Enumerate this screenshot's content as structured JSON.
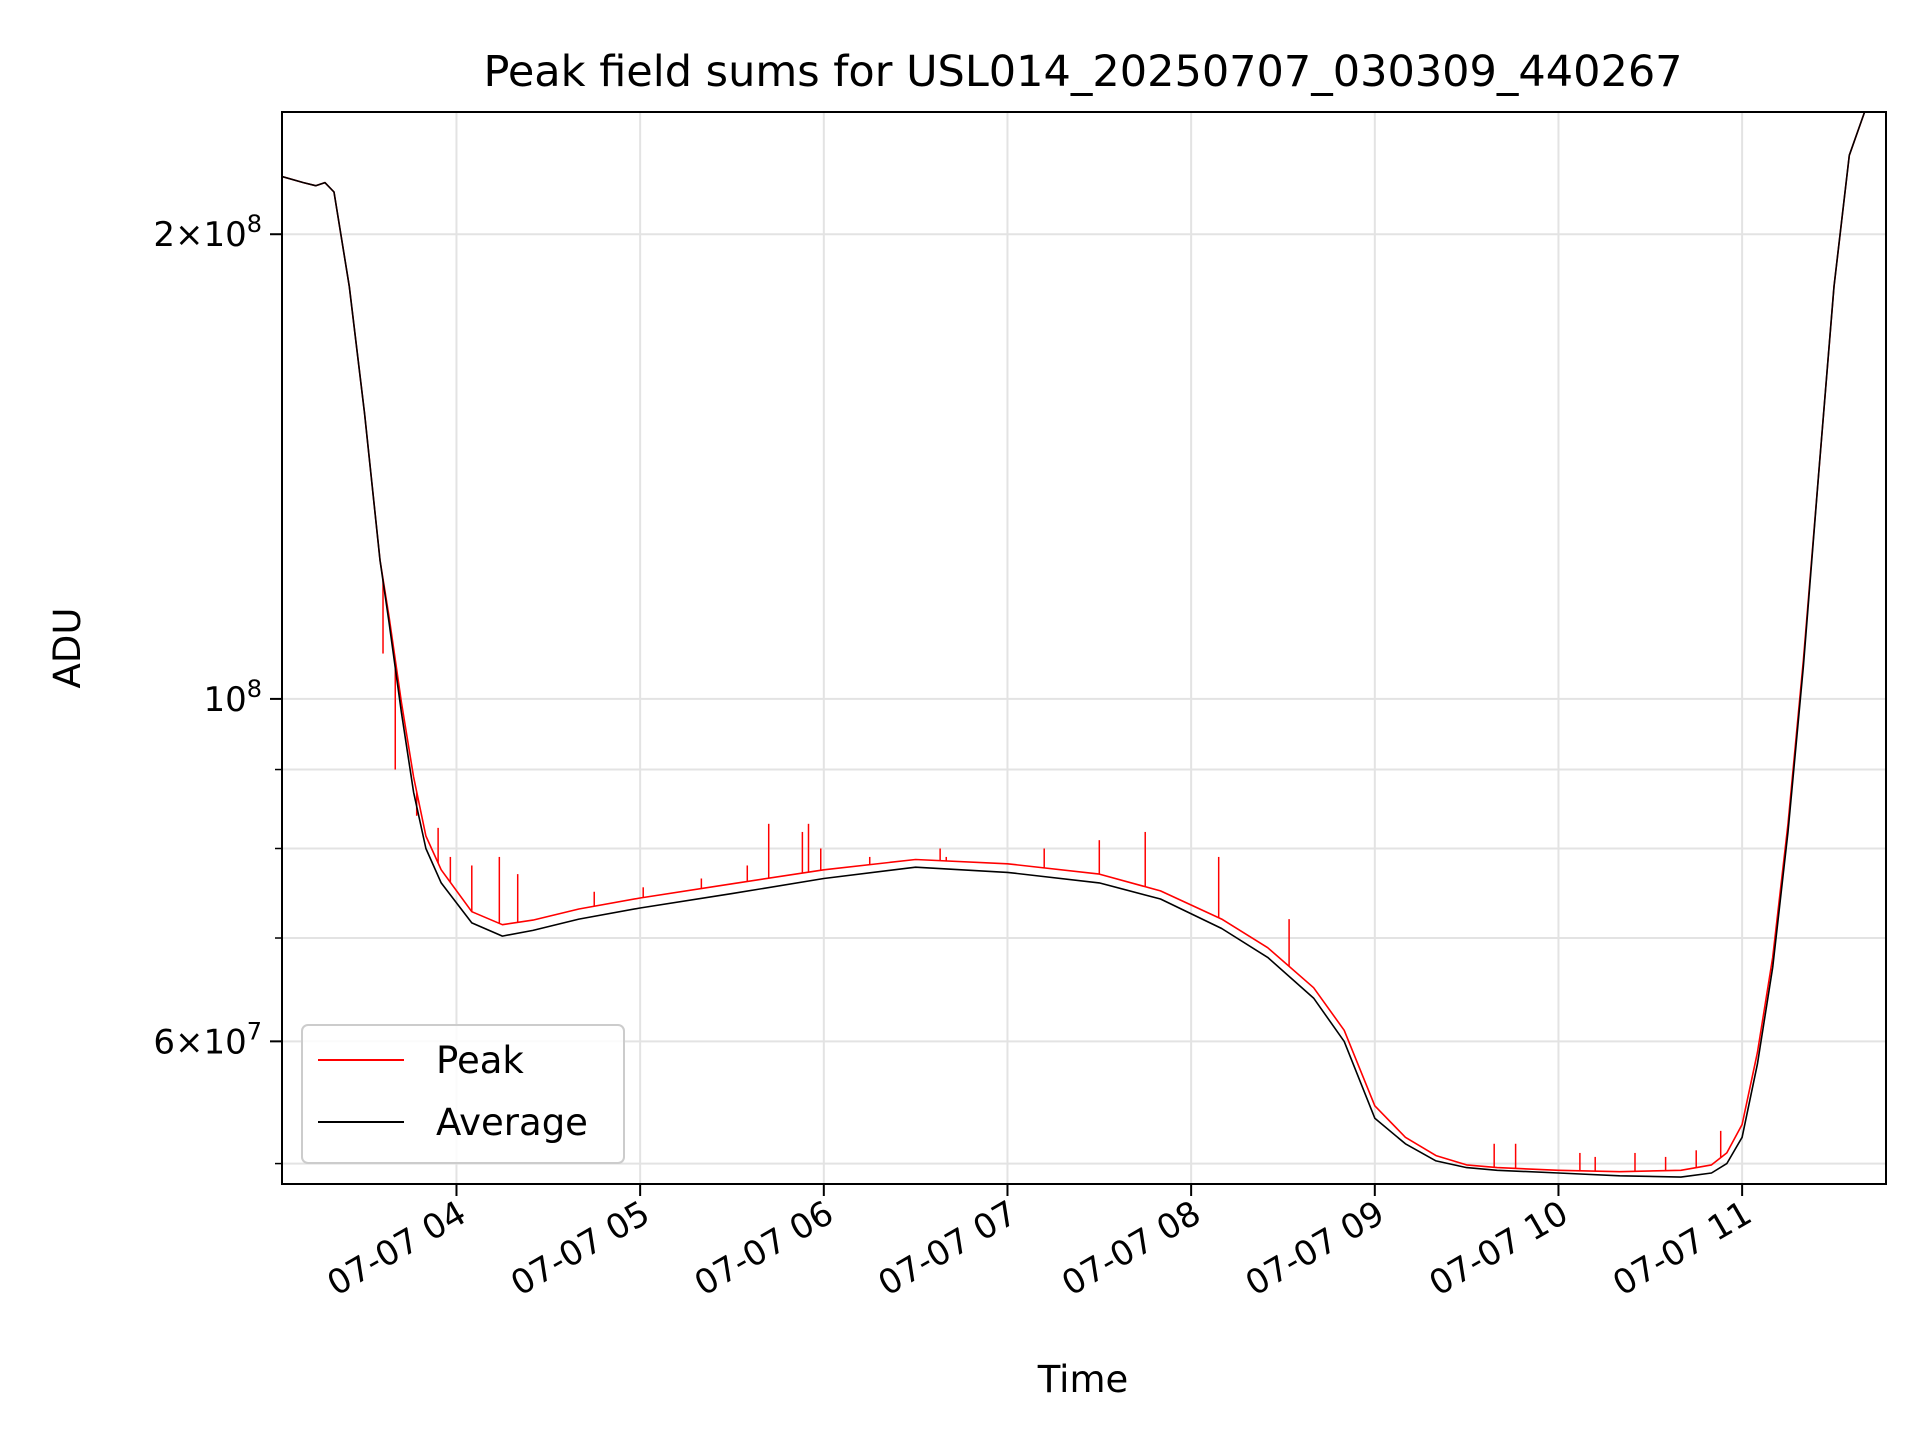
{
  "chart_data": {
    "type": "line",
    "title": "Peak field sums for USL014_20250707_030309_440267",
    "xlabel": "Time",
    "ylabel": "ADU",
    "yscale": "log",
    "ylim": [
      48500000,
      240000000
    ],
    "xlim": [
      "2025-07-07 03:03",
      "2025-07-07 11:47"
    ],
    "grid": true,
    "legend_position": "lower-left",
    "x_ticks": [
      {
        "label": "07-07 04",
        "value": "2025-07-07 04:00"
      },
      {
        "label": "07-07 05",
        "value": "2025-07-07 05:00"
      },
      {
        "label": "07-07 06",
        "value": "2025-07-07 06:00"
      },
      {
        "label": "07-07 07",
        "value": "2025-07-07 07:00"
      },
      {
        "label": "07-07 08",
        "value": "2025-07-07 08:00"
      },
      {
        "label": "07-07 09",
        "value": "2025-07-07 09:00"
      },
      {
        "label": "07-07 10",
        "value": "2025-07-07 10:00"
      },
      {
        "label": "07-07 11",
        "value": "2025-07-07 11:00"
      }
    ],
    "y_ticks": [
      {
        "mantissa": "2",
        "exponent": "8",
        "value": 200000000
      },
      {
        "mantissa": "",
        "exponent": "8",
        "value": 100000000
      },
      {
        "mantissa": "6",
        "exponent": "7",
        "value": 60000000
      }
    ],
    "y_minor_ticks": [
      50000000,
      70000000,
      80000000,
      90000000
    ],
    "colors": {
      "Peak": "#ff0000",
      "Average": "#000000"
    },
    "series": [
      {
        "name": "Average",
        "x": [
          "2025-07-07 03:03",
          "2025-07-07 03:10",
          "2025-07-07 03:14",
          "2025-07-07 03:17",
          "2025-07-07 03:20",
          "2025-07-07 03:25",
          "2025-07-07 03:30",
          "2025-07-07 03:35",
          "2025-07-07 03:38",
          "2025-07-07 03:42",
          "2025-07-07 03:46",
          "2025-07-07 03:50",
          "2025-07-07 03:55",
          "2025-07-07 04:05",
          "2025-07-07 04:15",
          "2025-07-07 04:25",
          "2025-07-07 04:40",
          "2025-07-07 05:00",
          "2025-07-07 05:30",
          "2025-07-07 06:00",
          "2025-07-07 06:30",
          "2025-07-07 07:00",
          "2025-07-07 07:30",
          "2025-07-07 07:50",
          "2025-07-07 08:10",
          "2025-07-07 08:25",
          "2025-07-07 08:40",
          "2025-07-07 08:50",
          "2025-07-07 09:00",
          "2025-07-07 09:10",
          "2025-07-07 09:20",
          "2025-07-07 09:30",
          "2025-07-07 09:40",
          "2025-07-07 10:00",
          "2025-07-07 10:20",
          "2025-07-07 10:40",
          "2025-07-07 10:50",
          "2025-07-07 10:55",
          "2025-07-07 11:00",
          "2025-07-07 11:05",
          "2025-07-07 11:10",
          "2025-07-07 11:15",
          "2025-07-07 11:20",
          "2025-07-07 11:25",
          "2025-07-07 11:30",
          "2025-07-07 11:35",
          "2025-07-07 11:40",
          "2025-07-07 11:47"
        ],
        "y": [
          218000000,
          216000000,
          215000000,
          216000000,
          213000000,
          185000000,
          153000000,
          123000000,
          112000000,
          98000000,
          87000000,
          80000000,
          76000000,
          71600000,
          70200000,
          70800000,
          72000000,
          73200000,
          74800000,
          76500000,
          77800000,
          77200000,
          76000000,
          74200000,
          71000000,
          68000000,
          64000000,
          60000000,
          53500000,
          51500000,
          50200000,
          49700000,
          49500000,
          49300000,
          49100000,
          49000000,
          49300000,
          50000000,
          52000000,
          58000000,
          67000000,
          82000000,
          105000000,
          140000000,
          185000000,
          225000000,
          240000000,
          240000000
        ]
      },
      {
        "name": "Peak",
        "x": [
          "2025-07-07 03:03",
          "2025-07-07 03:10",
          "2025-07-07 03:14",
          "2025-07-07 03:17",
          "2025-07-07 03:20",
          "2025-07-07 03:25",
          "2025-07-07 03:30",
          "2025-07-07 03:35",
          "2025-07-07 03:38",
          "2025-07-07 03:42",
          "2025-07-07 03:46",
          "2025-07-07 03:50",
          "2025-07-07 03:55",
          "2025-07-07 04:05",
          "2025-07-07 04:15",
          "2025-07-07 04:25",
          "2025-07-07 04:40",
          "2025-07-07 05:00",
          "2025-07-07 05:30",
          "2025-07-07 06:00",
          "2025-07-07 06:30",
          "2025-07-07 07:00",
          "2025-07-07 07:30",
          "2025-07-07 07:50",
          "2025-07-07 08:10",
          "2025-07-07 08:25",
          "2025-07-07 08:40",
          "2025-07-07 08:50",
          "2025-07-07 09:00",
          "2025-07-07 09:10",
          "2025-07-07 09:20",
          "2025-07-07 09:30",
          "2025-07-07 09:40",
          "2025-07-07 10:00",
          "2025-07-07 10:20",
          "2025-07-07 10:40",
          "2025-07-07 10:50",
          "2025-07-07 10:55",
          "2025-07-07 11:00",
          "2025-07-07 11:05",
          "2025-07-07 11:10",
          "2025-07-07 11:15",
          "2025-07-07 11:20",
          "2025-07-07 11:25",
          "2025-07-07 11:30",
          "2025-07-07 11:35",
          "2025-07-07 11:40",
          "2025-07-07 11:47"
        ],
        "y": [
          218000000,
          216000000,
          215000000,
          216000000,
          213000000,
          185000000,
          153000000,
          123000000,
          113000000,
          99500000,
          89000000,
          81500000,
          77500000,
          72800000,
          71400000,
          71900000,
          73100000,
          74300000,
          75900000,
          77500000,
          78700000,
          78200000,
          77000000,
          75100000,
          72000000,
          69000000,
          65000000,
          61000000,
          54500000,
          52000000,
          50600000,
          49900000,
          49700000,
          49500000,
          49400000,
          49500000,
          49900000,
          50800000,
          53000000,
          59000000,
          68000000,
          83000000,
          106000000,
          140000000,
          185000000,
          225000000,
          240000000,
          240000000
        ],
        "spikes": [
          {
            "x": "2025-07-07 03:36",
            "y": 107000000
          },
          {
            "x": "2025-07-07 03:40",
            "y": 90000000
          },
          {
            "x": "2025-07-07 03:47",
            "y": 84000000
          },
          {
            "x": "2025-07-07 03:54",
            "y": 82500000
          },
          {
            "x": "2025-07-07 03:58",
            "y": 79000000
          },
          {
            "x": "2025-07-07 04:05",
            "y": 78000000
          },
          {
            "x": "2025-07-07 04:14",
            "y": 79000000
          },
          {
            "x": "2025-07-07 04:20",
            "y": 77000000
          },
          {
            "x": "2025-07-07 04:45",
            "y": 75000000
          },
          {
            "x": "2025-07-07 05:01",
            "y": 75500000
          },
          {
            "x": "2025-07-07 05:20",
            "y": 76500000
          },
          {
            "x": "2025-07-07 05:35",
            "y": 78000000
          },
          {
            "x": "2025-07-07 05:42",
            "y": 83000000
          },
          {
            "x": "2025-07-07 05:53",
            "y": 82000000
          },
          {
            "x": "2025-07-07 05:55",
            "y": 83000000
          },
          {
            "x": "2025-07-07 05:59",
            "y": 80000000
          },
          {
            "x": "2025-07-07 06:15",
            "y": 79000000
          },
          {
            "x": "2025-07-07 06:38",
            "y": 80000000
          },
          {
            "x": "2025-07-07 06:40",
            "y": 79000000
          },
          {
            "x": "2025-07-07 07:12",
            "y": 80000000
          },
          {
            "x": "2025-07-07 07:30",
            "y": 81000000
          },
          {
            "x": "2025-07-07 07:45",
            "y": 82000000
          },
          {
            "x": "2025-07-07 08:09",
            "y": 79000000
          },
          {
            "x": "2025-07-07 08:32",
            "y": 72000000
          },
          {
            "x": "2025-07-07 09:39",
            "y": 51500000
          },
          {
            "x": "2025-07-07 09:46",
            "y": 51500000
          },
          {
            "x": "2025-07-07 10:07",
            "y": 50800000
          },
          {
            "x": "2025-07-07 10:12",
            "y": 50500000
          },
          {
            "x": "2025-07-07 10:25",
            "y": 50800000
          },
          {
            "x": "2025-07-07 10:35",
            "y": 50500000
          },
          {
            "x": "2025-07-07 10:45",
            "y": 51000000
          },
          {
            "x": "2025-07-07 10:53",
            "y": 52500000
          }
        ]
      }
    ]
  }
}
